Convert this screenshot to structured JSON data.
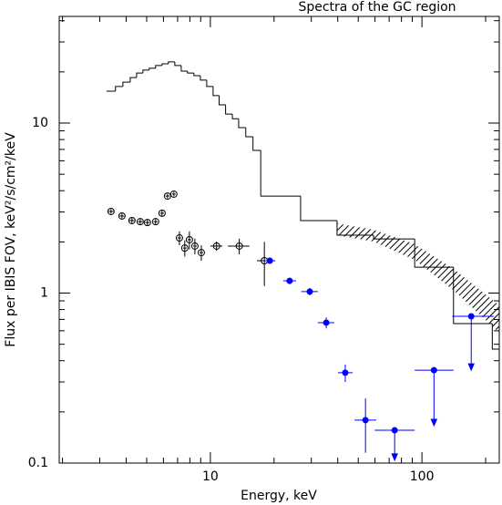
{
  "chart_data": {
    "type": "scatter",
    "title": "Spectra of the GC region",
    "xlabel": "Energy, keV",
    "ylabel": "Flux per IBIS FOV, keV²/s/cm²/keV",
    "xscale": "log",
    "yscale": "log",
    "xlim": [
      1.93,
      232
    ],
    "ylim": [
      0.1,
      42.4
    ],
    "xticks": [
      10,
      100
    ],
    "yticks": [
      0.1,
      1,
      10
    ],
    "x_minor_ticks": [
      2,
      3,
      4,
      5,
      6,
      7,
      8,
      9,
      20,
      30,
      40,
      50,
      60,
      70,
      80,
      90,
      200
    ],
    "y_minor_ticks": [
      0.2,
      0.3,
      0.4,
      0.5,
      0.6,
      0.7,
      0.8,
      0.9,
      2,
      3,
      4,
      5,
      6,
      7,
      8,
      9,
      20,
      30,
      40
    ],
    "series": [
      {
        "kind": "histogram",
        "color": "#000000",
        "bins": [
          3.23,
          3.56,
          3.86,
          4.18,
          4.48,
          4.8,
          5.14,
          5.51,
          5.91,
          6.33,
          6.79,
          7.28,
          7.8,
          8.36,
          8.97,
          9.61,
          10.3,
          11.0,
          11.8,
          12.7,
          13.6,
          14.7,
          15.9,
          17.3,
          26.7,
          39.7,
          59.1,
          92.4,
          141,
          215,
          232
        ],
        "values": [
          15.4,
          16.4,
          17.4,
          18.5,
          19.7,
          20.5,
          21.0,
          21.8,
          22.3,
          22.9,
          21.8,
          20.2,
          19.7,
          19.0,
          17.9,
          16.4,
          14.5,
          12.8,
          11.3,
          10.6,
          9.4,
          8.31,
          6.9,
          3.72,
          2.67,
          2.19,
          2.08,
          1.42,
          0.661,
          0.468
        ]
      },
      {
        "kind": "band",
        "color": "#000000",
        "x": [
          39.7,
          59.1,
          92.4,
          141,
          232
        ],
        "upper": [
          2.57,
          2.36,
          1.94,
          1.39,
          0.847
        ],
        "lower": [
          2.19,
          2.01,
          1.57,
          1.04,
          0.584
        ]
      },
      {
        "kind": "errorbar",
        "marker": "open",
        "color": "#000000",
        "x": [
          3.39,
          3.82,
          4.26,
          4.66,
          5.04,
          5.51,
          5.91,
          6.27,
          6.72,
          7.14,
          7.57,
          7.96,
          8.45,
          9.06,
          10.7,
          13.7,
          18.0
        ],
        "values": [
          3.02,
          2.84,
          2.67,
          2.63,
          2.6,
          2.63,
          2.95,
          3.72,
          3.82,
          2.11,
          1.84,
          2.06,
          1.89,
          1.73,
          1.89,
          1.89,
          1.55
        ],
        "xerr": [
          0.1,
          0.1,
          0.12,
          0.12,
          0.12,
          0.13,
          0.13,
          0.14,
          0.14,
          0.15,
          0.15,
          0.16,
          0.17,
          0.18,
          0.7,
          1.6,
          1.4
        ],
        "yerr": [
          0.1,
          0.1,
          0.1,
          0.1,
          0.1,
          0.1,
          0.12,
          0.12,
          0.12,
          0.2,
          0.2,
          0.25,
          0.2,
          0.18,
          0.12,
          0.2,
          0.45
        ]
      },
      {
        "kind": "limits",
        "marker": "filled",
        "color": "#0000ff",
        "x": [
          19.1,
          23.7,
          29.5,
          35.3,
          43.4,
          54.1,
          74.3,
          114,
          171
        ],
        "values": [
          1.55,
          1.18,
          1.02,
          0.67,
          0.34,
          0.179,
          0.156,
          0.352,
          0.73
        ],
        "xlo": [
          18.0,
          22.1,
          26.9,
          32.2,
          40.1,
          48.0,
          59.8,
          92.4,
          139
        ],
        "xhi": [
          20.3,
          25.4,
          32.2,
          38.5,
          47.0,
          60.8,
          92.4,
          141,
          218
        ],
        "ylo": [
          1.5,
          1.13,
          0.97,
          0.62,
          0.3,
          0.115,
          0.104,
          0.166,
          0.352
        ],
        "yhi": [
          1.6,
          1.23,
          1.07,
          0.72,
          0.38,
          0.24,
          0.156,
          0.352,
          0.73
        ],
        "upper_limit": [
          false,
          false,
          false,
          false,
          false,
          false,
          true,
          true,
          true
        ]
      }
    ]
  }
}
